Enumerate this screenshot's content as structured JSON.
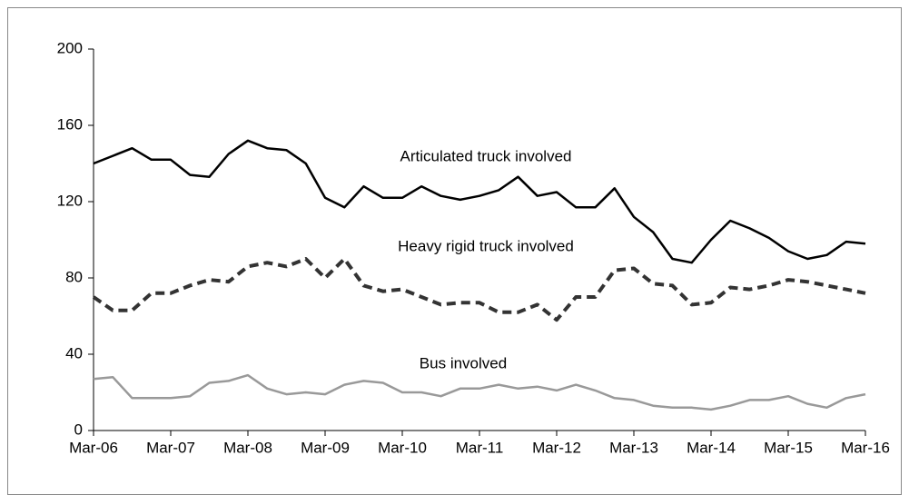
{
  "chart_data": {
    "type": "line",
    "categories": [
      "Mar-06",
      null,
      null,
      null,
      "Mar-07",
      null,
      null,
      null,
      "Mar-08",
      null,
      null,
      null,
      "Mar-09",
      null,
      null,
      null,
      "Mar-10",
      null,
      null,
      null,
      "Mar-11",
      null,
      null,
      null,
      "Mar-12",
      null,
      null,
      null,
      "Mar-13",
      null,
      null,
      null,
      "Mar-14",
      null,
      null,
      null,
      "Mar-15",
      null,
      null,
      null,
      "Mar-16"
    ],
    "series": [
      {
        "name": "Articulated truck involved",
        "color": "#000000",
        "dashed": false,
        "values": [
          140,
          144,
          148,
          142,
          142,
          134,
          133,
          145,
          152,
          148,
          147,
          140,
          122,
          117,
          128,
          122,
          122,
          128,
          123,
          121,
          123,
          126,
          133,
          123,
          125,
          117,
          117,
          127,
          112,
          104,
          90,
          88,
          100,
          110,
          106,
          101,
          94,
          90,
          92,
          99,
          98
        ]
      },
      {
        "name": "Heavy rigid truck involved",
        "color": "#333333",
        "dashed": true,
        "values": [
          70,
          63,
          63,
          72,
          72,
          76,
          79,
          78,
          86,
          88,
          86,
          90,
          80,
          90,
          76,
          73,
          74,
          70,
          66,
          67,
          67,
          62,
          62,
          66,
          58,
          70,
          70,
          84,
          85,
          77,
          76,
          66,
          67,
          75,
          74,
          76,
          79,
          78,
          76,
          74,
          72
        ]
      },
      {
        "name": "Bus involved",
        "color": "#999999",
        "dashed": false,
        "values": [
          27,
          28,
          17,
          17,
          17,
          18,
          25,
          26,
          29,
          22,
          19,
          20,
          19,
          24,
          26,
          25,
          20,
          20,
          18,
          22,
          22,
          24,
          22,
          23,
          21,
          24,
          21,
          17,
          16,
          13,
          12,
          12,
          11,
          13,
          16,
          16,
          18,
          14,
          12,
          17,
          19
        ]
      }
    ],
    "ylim": [
      0,
      200
    ],
    "yticks": [
      0,
      40,
      80,
      120,
      160,
      200
    ],
    "grid": false
  }
}
